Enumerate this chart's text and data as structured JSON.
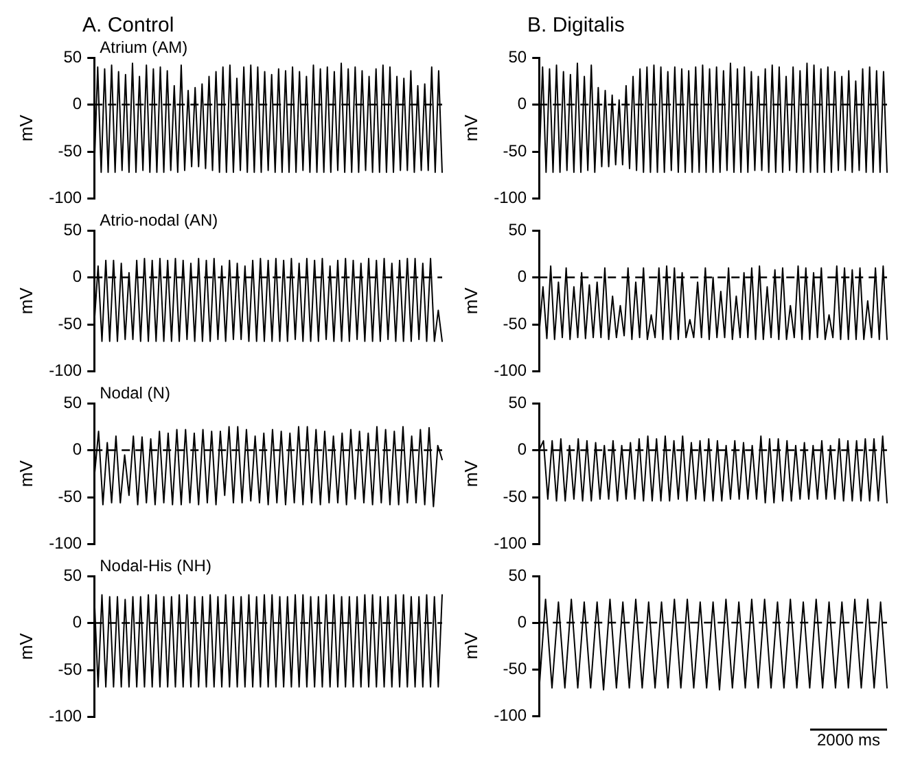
{
  "chart_data": [
    {
      "type": "line",
      "title": "A. Control",
      "subtitle": "Atrium (AM)",
      "ylabel": "mV",
      "ylim": [
        -100,
        50
      ],
      "yticks": [
        -100,
        -50,
        0,
        50
      ],
      "tick_labels": "y",
      "grid": false,
      "legend": false,
      "line_style": "solid",
      "marker": "none",
      "ref_lines": [
        {
          "axis": "y",
          "value": 0,
          "color": "#000000",
          "line_style": "dashed"
        }
      ],
      "categories": [
        null,
        null,
        null,
        null,
        null,
        null,
        null,
        null,
        null,
        null,
        null,
        null,
        null,
        null,
        null,
        null,
        null,
        null,
        null,
        null,
        null,
        null,
        null,
        null,
        null,
        null,
        null,
        null,
        null,
        null,
        null,
        null,
        null,
        null,
        null,
        null,
        null,
        null,
        null,
        null,
        null,
        null,
        null,
        null,
        null,
        null,
        null,
        null,
        null,
        null,
        null,
        null,
        null,
        null,
        null,
        null,
        null,
        null,
        null,
        null,
        null,
        null,
        null,
        null,
        null,
        null,
        null,
        null,
        null,
        null,
        null,
        null,
        null,
        null,
        null,
        null,
        null,
        null,
        null,
        null,
        null,
        null,
        null,
        null,
        null,
        null,
        null,
        null,
        null,
        null,
        null,
        null,
        null,
        null,
        null,
        null,
        null,
        null,
        null,
        null,
        null
      ],
      "series": [
        {
          "color": "#000000",
          "values": [
            -70,
            40,
            -72,
            38,
            -72,
            42,
            -72,
            35,
            -70,
            32,
            -72,
            44,
            -72,
            30,
            -70,
            42,
            -72,
            38,
            -72,
            40,
            -72,
            36,
            -70,
            20,
            -72,
            42,
            -70,
            15,
            -66,
            18,
            -66,
            22,
            -68,
            30,
            -70,
            35,
            -72,
            40,
            -72,
            42,
            -72,
            28,
            -70,
            40,
            -72,
            42,
            -72,
            40,
            -72,
            35,
            -70,
            32,
            -72,
            38,
            -72,
            36,
            -72,
            40,
            -72,
            35,
            -70,
            30,
            -72,
            42,
            -72,
            38,
            -72,
            40,
            -72,
            35,
            -70,
            44,
            -72,
            38,
            -72,
            40,
            -72,
            36,
            -70,
            30,
            -72,
            38,
            -72,
            42,
            -72,
            40,
            -72,
            30,
            -70,
            28,
            -70,
            36,
            -72,
            20,
            -70,
            22,
            -70,
            40,
            -72,
            36,
            -72
          ]
        }
      ]
    },
    {
      "type": "line",
      "title": "B. Digitalis",
      "ylabel": "mV",
      "ylim": [
        -100,
        50
      ],
      "yticks": [
        -100,
        -50,
        0,
        50
      ],
      "tick_labels": "y",
      "grid": false,
      "legend": false,
      "line_style": "solid",
      "marker": "none",
      "ref_lines": [
        {
          "axis": "y",
          "value": 0,
          "color": "#000000",
          "line_style": "dashed"
        }
      ],
      "categories": [
        null,
        null,
        null,
        null,
        null,
        null,
        null,
        null,
        null,
        null,
        null,
        null,
        null,
        null,
        null,
        null,
        null,
        null,
        null,
        null,
        null,
        null,
        null,
        null,
        null,
        null,
        null,
        null,
        null,
        null,
        null,
        null,
        null,
        null,
        null,
        null,
        null,
        null,
        null,
        null,
        null,
        null,
        null,
        null,
        null,
        null,
        null,
        null,
        null,
        null,
        null,
        null,
        null,
        null,
        null,
        null,
        null,
        null,
        null,
        null,
        null,
        null,
        null,
        null,
        null,
        null,
        null,
        null,
        null,
        null,
        null,
        null,
        null,
        null,
        null,
        null,
        null,
        null,
        null,
        null,
        null,
        null,
        null,
        null,
        null,
        null,
        null,
        null,
        null,
        null,
        null,
        null,
        null,
        null,
        null,
        null,
        null,
        null,
        null,
        null,
        null
      ],
      "series": [
        {
          "color": "#000000",
          "values": [
            -65,
            40,
            -72,
            38,
            -72,
            42,
            -72,
            35,
            -70,
            32,
            -72,
            44,
            -72,
            30,
            -70,
            42,
            -72,
            18,
            -66,
            15,
            -66,
            10,
            -64,
            5,
            -64,
            20,
            -68,
            30,
            -70,
            38,
            -72,
            40,
            -72,
            42,
            -72,
            40,
            -72,
            35,
            -70,
            40,
            -72,
            38,
            -72,
            36,
            -72,
            40,
            -72,
            42,
            -72,
            38,
            -72,
            40,
            -72,
            36,
            -70,
            44,
            -72,
            38,
            -72,
            40,
            -72,
            35,
            -70,
            30,
            -70,
            38,
            -72,
            42,
            -72,
            40,
            -72,
            30,
            -70,
            40,
            -72,
            36,
            -72,
            44,
            -72,
            42,
            -72,
            38,
            -72,
            40,
            -72,
            35,
            -70,
            30,
            -70,
            36,
            -72,
            25,
            -70,
            38,
            -72,
            40,
            -72,
            36,
            -72,
            35,
            -72
          ]
        }
      ]
    },
    {
      "type": "line",
      "subtitle": "Atrio-nodal (AN)",
      "ylabel": "mV",
      "ylim": [
        -100,
        50
      ],
      "yticks": [
        -100,
        -50,
        0,
        50
      ],
      "tick_labels": "y",
      "grid": false,
      "legend": false,
      "line_style": "solid",
      "marker": "none",
      "ref_lines": [
        {
          "axis": "y",
          "value": 0,
          "color": "#000000",
          "line_style": "dashed"
        }
      ],
      "categories": [
        null,
        null,
        null,
        null,
        null,
        null,
        null,
        null,
        null,
        null,
        null,
        null,
        null,
        null,
        null,
        null,
        null,
        null,
        null,
        null,
        null,
        null,
        null,
        null,
        null,
        null,
        null,
        null,
        null,
        null,
        null,
        null,
        null,
        null,
        null,
        null,
        null,
        null,
        null,
        null,
        null,
        null,
        null,
        null,
        null,
        null,
        null,
        null,
        null,
        null,
        null,
        null,
        null,
        null,
        null,
        null,
        null,
        null,
        null,
        null,
        null,
        null,
        null,
        null,
        null,
        null,
        null,
        null,
        null,
        null,
        null,
        null,
        null,
        null,
        null,
        null,
        null,
        null,
        null,
        null,
        null,
        null,
        null,
        null,
        null,
        null,
        null,
        null,
        null,
        null,
        null
      ],
      "series": [
        {
          "color": "#000000",
          "values": [
            -50,
            12,
            -68,
            18,
            -68,
            18,
            -68,
            15,
            -66,
            5,
            -66,
            18,
            -68,
            20,
            -68,
            18,
            -68,
            20,
            -68,
            18,
            -68,
            20,
            -68,
            18,
            -66,
            15,
            -68,
            20,
            -68,
            18,
            -68,
            20,
            -66,
            12,
            -68,
            18,
            -66,
            15,
            -66,
            12,
            -68,
            18,
            -68,
            20,
            -68,
            18,
            -68,
            20,
            -68,
            18,
            -68,
            20,
            -66,
            15,
            -68,
            20,
            -68,
            18,
            -68,
            20,
            -66,
            12,
            -68,
            18,
            -68,
            20,
            -68,
            18,
            -66,
            15,
            -68,
            20,
            -68,
            18,
            -68,
            20,
            -66,
            15,
            -68,
            18,
            -68,
            20,
            -68,
            20,
            -66,
            15,
            -68,
            20,
            -68,
            -35,
            -68
          ]
        }
      ]
    },
    {
      "type": "line",
      "ylabel": "mV",
      "ylim": [
        -100,
        50
      ],
      "yticks": [
        -100,
        -50,
        0,
        50
      ],
      "tick_labels": "y",
      "grid": false,
      "legend": false,
      "line_style": "solid",
      "marker": "none",
      "ref_lines": [
        {
          "axis": "y",
          "value": 0,
          "color": "#000000",
          "line_style": "dashed"
        }
      ],
      "categories": [
        null,
        null,
        null,
        null,
        null,
        null,
        null,
        null,
        null,
        null,
        null,
        null,
        null,
        null,
        null,
        null,
        null,
        null,
        null,
        null,
        null,
        null,
        null,
        null,
        null,
        null,
        null,
        null,
        null,
        null,
        null,
        null,
        null,
        null,
        null,
        null,
        null,
        null,
        null,
        null,
        null,
        null,
        null,
        null,
        null,
        null,
        null,
        null,
        null,
        null,
        null,
        null,
        null,
        null,
        null,
        null,
        null,
        null,
        null,
        null,
        null,
        null,
        null,
        null,
        null,
        null,
        null,
        null,
        null,
        null,
        null,
        null,
        null,
        null,
        null,
        null,
        null,
        null,
        null,
        null,
        null,
        null,
        null,
        null,
        null,
        null,
        null,
        null,
        null,
        null,
        null
      ],
      "series": [
        {
          "color": "#000000",
          "values": [
            -60,
            -10,
            -65,
            12,
            -66,
            -5,
            -64,
            10,
            -66,
            -10,
            -64,
            5,
            -65,
            -8,
            -64,
            -5,
            -64,
            10,
            -66,
            -20,
            -64,
            -30,
            -62,
            10,
            -66,
            -5,
            -64,
            10,
            -66,
            -40,
            -64,
            10,
            -66,
            12,
            -66,
            10,
            -66,
            5,
            -64,
            -45,
            -64,
            -5,
            -64,
            10,
            -66,
            0,
            -64,
            -15,
            -64,
            10,
            -66,
            -20,
            -64,
            5,
            -64,
            10,
            -66,
            12,
            -66,
            -10,
            -64,
            8,
            -66,
            10,
            -66,
            -30,
            -64,
            12,
            -66,
            10,
            -66,
            5,
            -64,
            10,
            -66,
            -40,
            -64,
            12,
            -66,
            10,
            -66,
            8,
            -66,
            10,
            -66,
            -25,
            -64,
            10,
            -66,
            12,
            -66
          ]
        }
      ]
    },
    {
      "type": "line",
      "subtitle": "Nodal (N)",
      "ylabel": "mV",
      "ylim": [
        -100,
        50
      ],
      "yticks": [
        -100,
        -50,
        0,
        50
      ],
      "tick_labels": "y",
      "grid": false,
      "legend": false,
      "line_style": "solid",
      "marker": "none",
      "ref_lines": [
        {
          "axis": "y",
          "value": 0,
          "color": "#000000",
          "line_style": "dashed"
        }
      ],
      "categories": [
        null,
        null,
        null,
        null,
        null,
        null,
        null,
        null,
        null,
        null,
        null,
        null,
        null,
        null,
        null,
        null,
        null,
        null,
        null,
        null,
        null,
        null,
        null,
        null,
        null,
        null,
        null,
        null,
        null,
        null,
        null,
        null,
        null,
        null,
        null,
        null,
        null,
        null,
        null,
        null,
        null,
        null,
        null,
        null,
        null,
        null,
        null,
        null,
        null,
        null,
        null,
        null,
        null,
        null,
        null,
        null,
        null,
        null,
        null,
        null,
        null,
        null,
        null,
        null,
        null,
        null,
        null,
        null,
        null,
        null,
        null,
        null,
        null,
        null,
        null,
        null,
        null,
        null,
        null,
        null,
        null
      ],
      "series": [
        {
          "color": "#000000",
          "values": [
            -30,
            20,
            -58,
            8,
            -56,
            15,
            -56,
            -5,
            -48,
            15,
            -58,
            14,
            -56,
            12,
            -58,
            20,
            -56,
            18,
            -58,
            22,
            -58,
            22,
            -56,
            18,
            -58,
            22,
            -56,
            20,
            -58,
            20,
            -48,
            25,
            -56,
            25,
            -56,
            22,
            -54,
            15,
            -56,
            18,
            -58,
            22,
            -56,
            20,
            -58,
            18,
            -56,
            25,
            -58,
            25,
            -56,
            22,
            -58,
            20,
            -56,
            15,
            -56,
            18,
            -58,
            22,
            -52,
            20,
            -56,
            18,
            -58,
            25,
            -56,
            22,
            -58,
            20,
            -58,
            25,
            -56,
            15,
            -56,
            22,
            -58,
            24,
            -60,
            5,
            -10
          ]
        }
      ]
    },
    {
      "type": "line",
      "ylabel": "mV",
      "ylim": [
        -100,
        50
      ],
      "yticks": [
        -100,
        -50,
        0,
        50
      ],
      "tick_labels": "y",
      "grid": false,
      "legend": false,
      "line_style": "solid",
      "marker": "none",
      "ref_lines": [
        {
          "axis": "y",
          "value": 0,
          "color": "#000000",
          "line_style": "dashed"
        }
      ],
      "categories": [
        null,
        null,
        null,
        null,
        null,
        null,
        null,
        null,
        null,
        null,
        null,
        null,
        null,
        null,
        null,
        null,
        null,
        null,
        null,
        null,
        null,
        null,
        null,
        null,
        null,
        null,
        null,
        null,
        null,
        null,
        null,
        null,
        null,
        null,
        null,
        null,
        null,
        null,
        null,
        null,
        null,
        null,
        null,
        null,
        null,
        null,
        null,
        null,
        null,
        null,
        null,
        null,
        null,
        null,
        null,
        null,
        null,
        null,
        null,
        null,
        null,
        null,
        null,
        null,
        null,
        null,
        null,
        null,
        null,
        null,
        null,
        null,
        null,
        null,
        null,
        null,
        null,
        null,
        null,
        null,
        null
      ],
      "series": [
        {
          "color": "#000000",
          "values": [
            0,
            10,
            -52,
            10,
            -54,
            12,
            -54,
            5,
            -52,
            12,
            -54,
            10,
            -54,
            8,
            -52,
            5,
            -52,
            10,
            -54,
            5,
            -52,
            8,
            -52,
            12,
            -54,
            15,
            -54,
            12,
            -54,
            15,
            -54,
            10,
            -52,
            15,
            -54,
            8,
            -52,
            10,
            -54,
            12,
            -54,
            10,
            -54,
            5,
            -52,
            10,
            -52,
            8,
            -52,
            5,
            -52,
            15,
            -56,
            12,
            -56,
            12,
            -54,
            10,
            -54,
            5,
            -52,
            8,
            -52,
            5,
            -52,
            10,
            -52,
            5,
            -52,
            12,
            -54,
            10,
            -54,
            10,
            -54,
            12,
            -54,
            12,
            -54,
            15,
            -56
          ]
        }
      ]
    },
    {
      "type": "line",
      "subtitle": "Nodal-His (NH)",
      "ylabel": "mV",
      "ylim": [
        -100,
        50
      ],
      "yticks": [
        -100,
        -50,
        0,
        50
      ],
      "tick_labels": "y",
      "grid": false,
      "legend": false,
      "line_style": "solid",
      "marker": "none",
      "ref_lines": [
        {
          "axis": "y",
          "value": 0,
          "color": "#000000",
          "line_style": "dashed"
        }
      ],
      "categories": [
        null,
        null,
        null,
        null,
        null,
        null,
        null,
        null,
        null,
        null,
        null,
        null,
        null,
        null,
        null,
        null,
        null,
        null,
        null,
        null,
        null,
        null,
        null,
        null,
        null,
        null,
        null,
        null,
        null,
        null,
        null,
        null,
        null,
        null,
        null,
        null,
        null,
        null,
        null,
        null,
        null,
        null,
        null,
        null,
        null,
        null,
        null,
        null,
        null,
        null,
        null,
        null,
        null,
        null,
        null,
        null,
        null,
        null,
        null,
        null,
        null,
        null,
        null,
        null,
        null,
        null,
        null,
        null,
        null,
        null,
        null,
        null,
        null,
        null,
        null,
        null,
        null,
        null,
        null,
        null,
        null,
        null,
        null,
        null,
        null,
        null,
        null,
        null,
        null,
        null,
        null
      ],
      "series": [
        {
          "color": "#000000",
          "values": [
            30,
            -68,
            30,
            -68,
            28,
            -68,
            28,
            -68,
            25,
            -68,
            28,
            -68,
            28,
            -68,
            30,
            -68,
            30,
            -68,
            28,
            -68,
            28,
            -68,
            30,
            -68,
            30,
            -68,
            28,
            -68,
            28,
            -68,
            30,
            -68,
            28,
            -68,
            30,
            -68,
            28,
            -68,
            28,
            -68,
            30,
            -68,
            28,
            -68,
            30,
            -68,
            30,
            -68,
            28,
            -68,
            28,
            -68,
            30,
            -68,
            30,
            -68,
            28,
            -68,
            28,
            -68,
            30,
            -68,
            30,
            -68,
            28,
            -68,
            28,
            -68,
            28,
            -68,
            30,
            -68,
            30,
            -68,
            28,
            -68,
            28,
            -68,
            30,
            -68,
            30,
            -68,
            28,
            -68,
            28,
            -68,
            30,
            -68,
            28,
            -68,
            30
          ]
        }
      ]
    },
    {
      "type": "line",
      "ylabel": "mV",
      "ylim": [
        -100,
        50
      ],
      "yticks": [
        -100,
        -50,
        0,
        50
      ],
      "tick_labels": "y",
      "grid": false,
      "legend": false,
      "line_style": "solid",
      "marker": "none",
      "ref_lines": [
        {
          "axis": "y",
          "value": 0,
          "color": "#000000",
          "line_style": "dashed"
        }
      ],
      "annotations": [
        "2000 ms"
      ],
      "categories": [
        null,
        null,
        null,
        null,
        null,
        null,
        null,
        null,
        null,
        null,
        null,
        null,
        null,
        null,
        null,
        null,
        null,
        null,
        null,
        null,
        null,
        null,
        null,
        null,
        null,
        null,
        null,
        null,
        null,
        null,
        null,
        null,
        null,
        null,
        null,
        null,
        null,
        null,
        null,
        null,
        null,
        null,
        null,
        null,
        null,
        null,
        null,
        null,
        null,
        null,
        null,
        null,
        null,
        null,
        null
      ],
      "series": [
        {
          "color": "#000000",
          "values": [
            -72,
            25,
            -70,
            22,
            -70,
            25,
            -70,
            22,
            -70,
            22,
            -72,
            25,
            -70,
            22,
            -70,
            25,
            -70,
            22,
            -70,
            22,
            -70,
            25,
            -70,
            25,
            -70,
            22,
            -70,
            22,
            -72,
            25,
            -70,
            22,
            -70,
            25,
            -70,
            25,
            -70,
            22,
            -70,
            25,
            -70,
            22,
            -70,
            25,
            -70,
            22,
            -70,
            22,
            -70,
            25,
            -70,
            25,
            -70,
            22,
            -70
          ]
        }
      ]
    }
  ]
}
